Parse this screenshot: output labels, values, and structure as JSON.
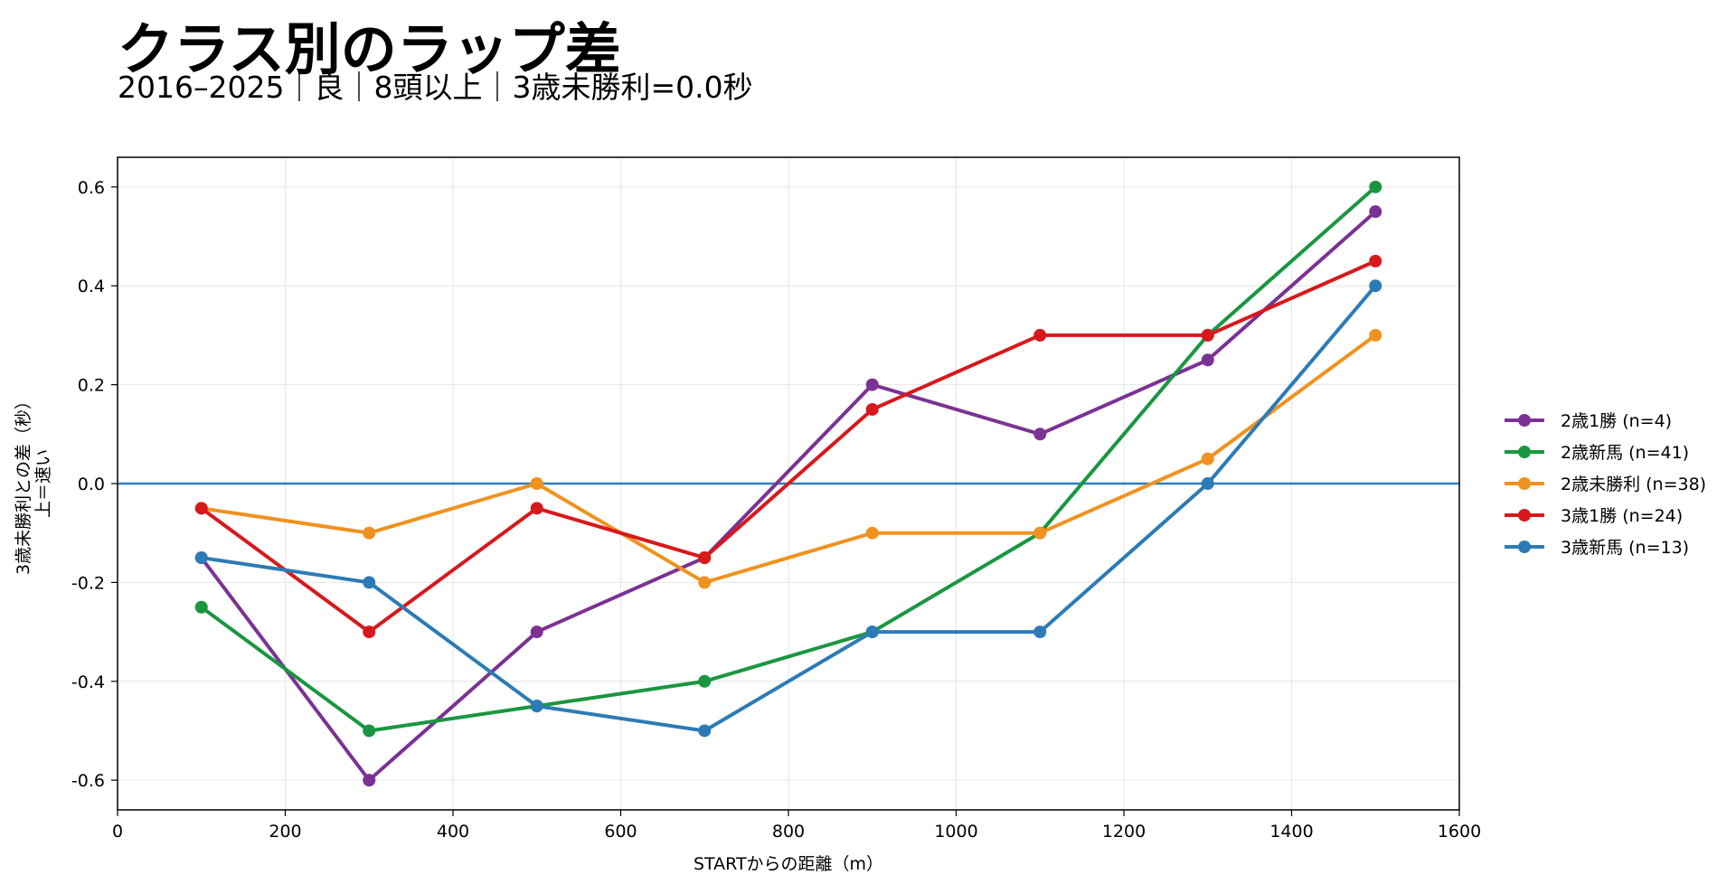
{
  "chart_data": {
    "type": "line",
    "title": "クラス別のラップ差",
    "subtitle": "2016–2025｜良｜8頭以上｜3歳未勝利=0.0秒",
    "xlabel": "STARTからの距離（m）",
    "ylabel_lines": [
      "3歳未勝利との差（秒）",
      "上＝速い"
    ],
    "xlim": [
      0,
      1600
    ],
    "ylim": [
      -0.66,
      0.66
    ],
    "xticks": [
      0,
      200,
      400,
      600,
      800,
      1000,
      1200,
      1400,
      1600
    ],
    "yticks": [
      -0.6,
      -0.4,
      -0.2,
      0.0,
      0.2,
      0.4,
      0.6
    ],
    "grid": true,
    "legend_position": "right",
    "reference_line": {
      "y": 0.0,
      "color": "#2f7fbd"
    },
    "x": [
      100,
      300,
      500,
      700,
      900,
      1100,
      1300,
      1500
    ],
    "series": [
      {
        "name": "2歳1勝 (n=4)",
        "color": "#7b3294",
        "values": [
          -0.15,
          -0.6,
          -0.3,
          -0.15,
          0.2,
          0.1,
          0.25,
          0.55
        ]
      },
      {
        "name": "2歳新馬 (n=41)",
        "color": "#1a9641",
        "values": [
          -0.25,
          -0.5,
          -0.45,
          -0.4,
          -0.3,
          -0.1,
          0.3,
          0.6
        ]
      },
      {
        "name": "2歳未勝利 (n=38)",
        "color": "#f0921f",
        "values": [
          -0.05,
          -0.1,
          0.0,
          -0.2,
          -0.1,
          -0.1,
          0.05,
          0.3
        ]
      },
      {
        "name": "3歳1勝 (n=24)",
        "color": "#d7191c",
        "values": [
          -0.05,
          -0.3,
          -0.05,
          -0.15,
          0.15,
          0.3,
          0.3,
          0.45
        ]
      },
      {
        "name": "3歳新馬 (n=13)",
        "color": "#2c7bb6",
        "values": [
          -0.15,
          -0.2,
          -0.45,
          -0.5,
          -0.3,
          -0.3,
          0.0,
          0.4
        ]
      }
    ]
  }
}
